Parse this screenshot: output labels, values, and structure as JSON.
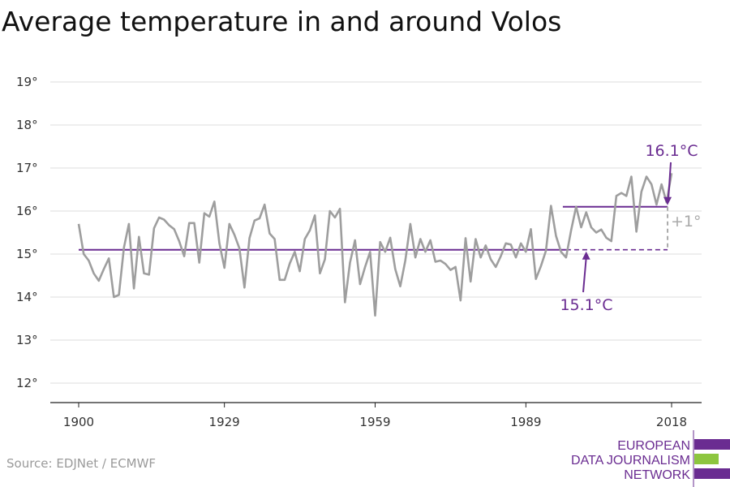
{
  "colors": {
    "series": "#9e9e9e",
    "baseline": "#6a2c91",
    "annotation": "#6a2c91",
    "diff": "#aaaaaa",
    "grid": "#dddddd",
    "axis": "#222222",
    "logo_purple": "#6a2c91",
    "logo_green": "#8dc63f"
  },
  "source": "Source: EDJNet / ECMWF",
  "logo": {
    "lines": [
      "EUROPEAN",
      "DATA JOURNALISM",
      "NETWORK"
    ]
  },
  "chart_data": {
    "type": "line",
    "title": "Average temperature in and around Volos",
    "xlabel": "",
    "ylabel": "",
    "xlim": [
      1900,
      2018
    ],
    "ylim": [
      12,
      19.5
    ],
    "grid": true,
    "x_tick_labels": [
      "1900",
      "1929",
      "1959",
      "1989",
      "2018"
    ],
    "x_ticks": [
      1900,
      1929,
      1959,
      1989,
      2018
    ],
    "y_tick_labels": [
      "12°",
      "13°",
      "14°",
      "15°",
      "16°",
      "17°",
      "18°",
      "19°"
    ],
    "y_ticks": [
      12,
      13,
      14,
      15,
      16,
      17,
      18,
      19
    ],
    "series": [
      {
        "x": [
          1900,
          1901,
          1902,
          1903,
          1904,
          1905,
          1906,
          1907,
          1908,
          1909,
          1910,
          1911,
          1912,
          1913,
          1914,
          1915,
          1916,
          1917,
          1918,
          1919,
          1920,
          1921,
          1922,
          1923,
          1924,
          1925,
          1926,
          1927,
          1928,
          1929,
          1930,
          1931,
          1932,
          1933,
          1934,
          1935,
          1936,
          1937,
          1938,
          1939,
          1940,
          1941,
          1942,
          1943,
          1944,
          1945,
          1946,
          1947,
          1948,
          1949,
          1950,
          1951,
          1952,
          1953,
          1954,
          1955,
          1956,
          1957,
          1958,
          1959,
          1960,
          1961,
          1962,
          1963,
          1964,
          1965,
          1966,
          1967,
          1968,
          1969,
          1970,
          1971,
          1972,
          1973,
          1974,
          1975,
          1976,
          1977,
          1978,
          1979,
          1980,
          1981,
          1982,
          1983,
          1984,
          1985,
          1986,
          1987,
          1988,
          1989,
          1990,
          1991,
          1992,
          1993,
          1994,
          1995,
          1996,
          1997,
          1998,
          1999,
          2000,
          2001,
          2002,
          2003,
          2004,
          2005,
          2006,
          2007,
          2008,
          2009,
          2010,
          2011,
          2012,
          2013,
          2014,
          2015,
          2016,
          2017,
          2018
        ],
        "values": [
          15.7,
          15.0,
          14.85,
          14.55,
          14.38,
          14.65,
          14.9,
          14.0,
          14.05,
          15.15,
          15.7,
          14.2,
          15.4,
          14.55,
          14.52,
          15.6,
          15.85,
          15.8,
          15.67,
          15.58,
          15.3,
          14.95,
          15.72,
          15.72,
          14.8,
          15.95,
          15.87,
          16.22,
          15.25,
          14.68,
          15.7,
          15.45,
          15.13,
          14.22,
          15.37,
          15.78,
          15.83,
          16.15,
          15.48,
          15.35,
          14.4,
          14.4,
          14.78,
          15.05,
          14.6,
          15.35,
          15.55,
          15.9,
          14.55,
          14.88,
          16.0,
          15.85,
          16.05,
          13.88,
          14.8,
          15.32,
          14.3,
          14.7,
          15.05,
          13.57,
          15.28,
          15.05,
          15.38,
          14.65,
          14.25,
          14.85,
          15.7,
          14.92,
          15.35,
          15.05,
          15.32,
          14.82,
          14.85,
          14.77,
          14.63,
          14.7,
          13.92,
          15.37,
          14.36,
          15.35,
          14.92,
          15.2,
          14.88,
          14.7,
          14.95,
          15.25,
          15.22,
          14.92,
          15.25,
          15.05,
          15.58,
          14.42,
          14.72,
          15.08,
          16.12,
          15.42,
          15.05,
          14.92,
          15.55,
          16.1,
          15.62,
          15.97,
          15.62,
          15.5,
          15.57,
          15.38,
          15.3,
          16.35,
          16.42,
          16.35,
          16.8,
          15.52,
          16.45,
          16.8,
          16.62,
          16.15,
          16.62,
          16.2,
          16.88
        ]
      }
    ],
    "baseline_value": 15.1,
    "recent_value": 16.1,
    "recent_from": 1997,
    "annotations": {
      "recent_label": "16.1°C",
      "baseline_label": "15.1°C",
      "diff_label": "+1°"
    }
  }
}
